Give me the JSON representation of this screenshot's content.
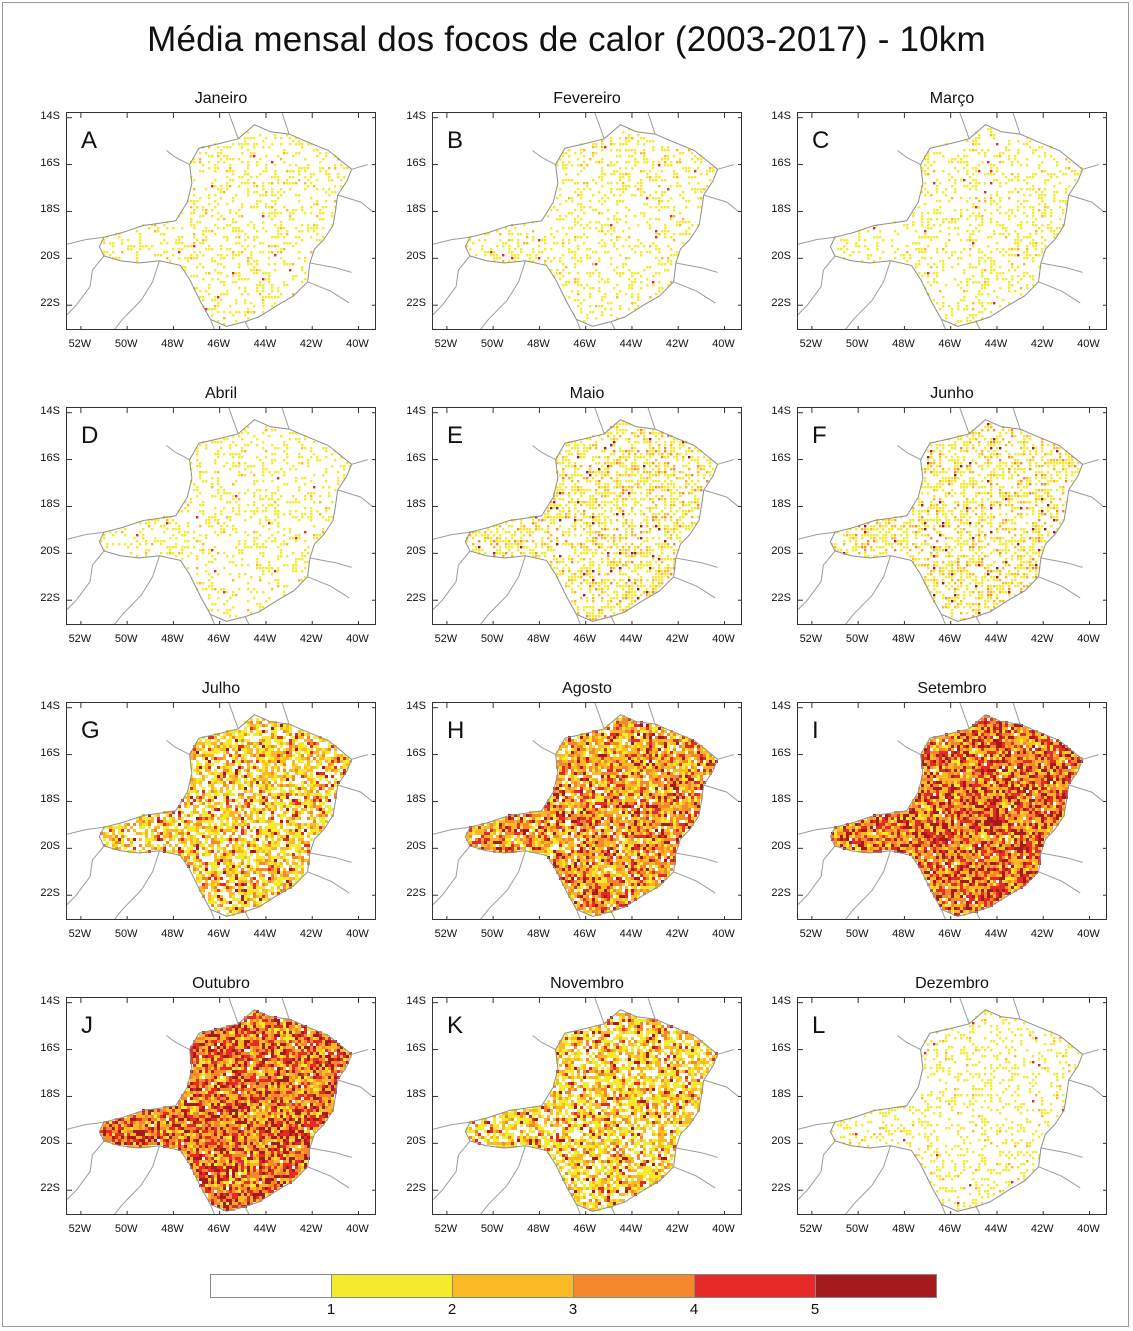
{
  "title": "Média mensal dos focos de calor (2003-2017) - 10km",
  "y_ticks": [
    "14S",
    "16S",
    "18S",
    "20S",
    "22S"
  ],
  "x_ticks": [
    "52W",
    "50W",
    "48W",
    "46W",
    "44W",
    "42W",
    "40W"
  ],
  "colors": [
    "#ffffff",
    "#f3eb2c",
    "#fdb924",
    "#f3892c",
    "#e52a28",
    "#a51b1d"
  ],
  "legend": {
    "labels": [
      "1",
      "2",
      "3",
      "4",
      "5"
    ]
  },
  "panels": [
    {
      "month": "Janeiro",
      "letter": "A",
      "intensity": 1
    },
    {
      "month": "Fevereiro",
      "letter": "B",
      "intensity": 1
    },
    {
      "month": "Março",
      "letter": "C",
      "intensity": 1
    },
    {
      "month": "Abril",
      "letter": "D",
      "intensity": 1
    },
    {
      "month": "Maio",
      "letter": "E",
      "intensity": 2
    },
    {
      "month": "Junho",
      "letter": "F",
      "intensity": 2
    },
    {
      "month": "Julho",
      "letter": "G",
      "intensity": 3
    },
    {
      "month": "Agosto",
      "letter": "H",
      "intensity": 4
    },
    {
      "month": "Setembro",
      "letter": "I",
      "intensity": 5
    },
    {
      "month": "Outubro",
      "letter": "J",
      "intensity": 5
    },
    {
      "month": "Novembro",
      "letter": "K",
      "intensity": 3
    },
    {
      "month": "Dezembro",
      "letter": "L",
      "intensity": 1
    }
  ]
}
